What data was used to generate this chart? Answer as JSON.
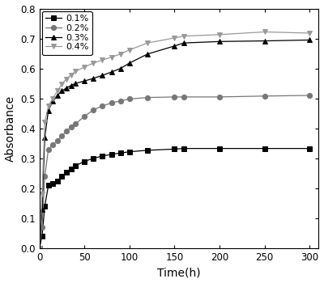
{
  "title": "",
  "xlabel": "Time(h)",
  "ylabel": "Absorbance",
  "xlim": [
    0,
    310
  ],
  "ylim": [
    0.0,
    0.8
  ],
  "xticks": [
    0,
    50,
    100,
    150,
    200,
    250,
    300
  ],
  "yticks": [
    0.0,
    0.1,
    0.2,
    0.3,
    0.4,
    0.5,
    0.6,
    0.7,
    0.8
  ],
  "series": [
    {
      "label": "0.1%",
      "line_color": "#000000",
      "marker": "s",
      "marker_face": "#000000",
      "marker_edge": "#000000",
      "x": [
        0,
        3,
        6,
        10,
        15,
        20,
        25,
        30,
        35,
        40,
        50,
        60,
        70,
        80,
        90,
        100,
        120,
        150,
        160,
        200,
        250,
        300
      ],
      "y": [
        0.0,
        0.04,
        0.14,
        0.21,
        0.215,
        0.225,
        0.24,
        0.255,
        0.265,
        0.275,
        0.29,
        0.3,
        0.308,
        0.313,
        0.318,
        0.322,
        0.327,
        0.331,
        0.333,
        0.333,
        0.333,
        0.333
      ]
    },
    {
      "label": "0.2%",
      "line_color": "#777777",
      "marker": "o",
      "marker_face": "#777777",
      "marker_edge": "#777777",
      "x": [
        0,
        3,
        6,
        10,
        15,
        20,
        25,
        30,
        35,
        40,
        50,
        60,
        70,
        80,
        90,
        100,
        120,
        150,
        160,
        200,
        250,
        300
      ],
      "y": [
        0.0,
        0.07,
        0.24,
        0.33,
        0.345,
        0.36,
        0.375,
        0.39,
        0.405,
        0.415,
        0.44,
        0.462,
        0.475,
        0.485,
        0.492,
        0.498,
        0.503,
        0.505,
        0.505,
        0.505,
        0.508,
        0.51
      ]
    },
    {
      "label": "0.3%",
      "line_color": "#000000",
      "marker": "^",
      "marker_face": "#000000",
      "marker_edge": "#000000",
      "x": [
        0,
        3,
        6,
        10,
        15,
        20,
        25,
        30,
        35,
        40,
        50,
        60,
        70,
        80,
        90,
        100,
        120,
        150,
        160,
        200,
        250,
        300
      ],
      "y": [
        0.0,
        0.13,
        0.37,
        0.46,
        0.49,
        0.51,
        0.525,
        0.535,
        0.543,
        0.55,
        0.558,
        0.567,
        0.577,
        0.588,
        0.6,
        0.618,
        0.648,
        0.675,
        0.685,
        0.69,
        0.692,
        0.695
      ]
    },
    {
      "label": "0.4%",
      "line_color": "#999999",
      "marker": "v",
      "marker_face": "#999999",
      "marker_edge": "#999999",
      "x": [
        0,
        3,
        6,
        10,
        15,
        20,
        25,
        30,
        35,
        40,
        50,
        60,
        70,
        80,
        90,
        100,
        120,
        150,
        160,
        200,
        250,
        300
      ],
      "y": [
        0.0,
        0.18,
        0.42,
        0.475,
        0.5,
        0.525,
        0.548,
        0.565,
        0.578,
        0.59,
        0.605,
        0.618,
        0.628,
        0.638,
        0.648,
        0.662,
        0.685,
        0.702,
        0.708,
        0.713,
        0.722,
        0.718
      ]
    }
  ],
  "legend_loc": "upper left",
  "figure_bg": "#ffffff",
  "axes_bg": "#ffffff",
  "figwidth": 4.0,
  "figheight": 3.5,
  "dpi": 100
}
